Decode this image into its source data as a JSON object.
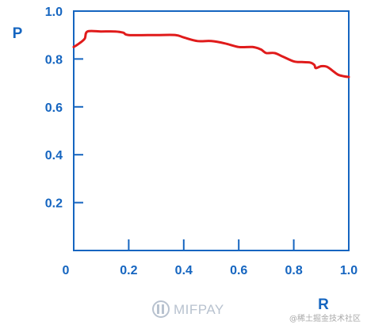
{
  "chart_data": {
    "type": "line",
    "xlabel": "R",
    "ylabel": "P",
    "xlim": [
      0,
      1.0
    ],
    "ylim": [
      0.0,
      1.0
    ],
    "x_ticks": [
      {
        "value": 0,
        "label": "0"
      },
      {
        "value": 0.2,
        "label": "0.2"
      },
      {
        "value": 0.4,
        "label": "0.4"
      },
      {
        "value": 0.6,
        "label": "0.6"
      },
      {
        "value": 0.8,
        "label": "0.8"
      },
      {
        "value": 1.0,
        "label": "1.0"
      }
    ],
    "y_ticks": [
      {
        "value": 0.2,
        "label": "0.2"
      },
      {
        "value": 0.4,
        "label": "0.4"
      },
      {
        "value": 0.6,
        "label": "0.6"
      },
      {
        "value": 0.8,
        "label": "0.8"
      },
      {
        "value": 1.0,
        "label": "1.0"
      }
    ],
    "grid": false,
    "series": [
      {
        "color": "#e01b1b",
        "points": [
          [
            0.0,
            0.85
          ],
          [
            0.02,
            0.865
          ],
          [
            0.04,
            0.885
          ],
          [
            0.05,
            0.915
          ],
          [
            0.1,
            0.915
          ],
          [
            0.15,
            0.915
          ],
          [
            0.18,
            0.91
          ],
          [
            0.2,
            0.9
          ],
          [
            0.3,
            0.9
          ],
          [
            0.37,
            0.9
          ],
          [
            0.4,
            0.89
          ],
          [
            0.45,
            0.875
          ],
          [
            0.5,
            0.875
          ],
          [
            0.55,
            0.865
          ],
          [
            0.6,
            0.85
          ],
          [
            0.65,
            0.85
          ],
          [
            0.68,
            0.84
          ],
          [
            0.7,
            0.825
          ],
          [
            0.73,
            0.825
          ],
          [
            0.76,
            0.81
          ],
          [
            0.8,
            0.79
          ],
          [
            0.83,
            0.787
          ],
          [
            0.86,
            0.785
          ],
          [
            0.875,
            0.775
          ],
          [
            0.88,
            0.762
          ],
          [
            0.9,
            0.77
          ],
          [
            0.92,
            0.768
          ],
          [
            0.94,
            0.752
          ],
          [
            0.96,
            0.735
          ],
          [
            0.98,
            0.728
          ],
          [
            1.0,
            0.725
          ]
        ]
      }
    ]
  },
  "colors": {
    "axis": "#1565c0",
    "series": "#e01b1b"
  },
  "watermark": {
    "logo_text": "MIFPAY",
    "logo_icon": "mifpay-logo-icon",
    "credit": "@稀土掘金技术社区"
  }
}
